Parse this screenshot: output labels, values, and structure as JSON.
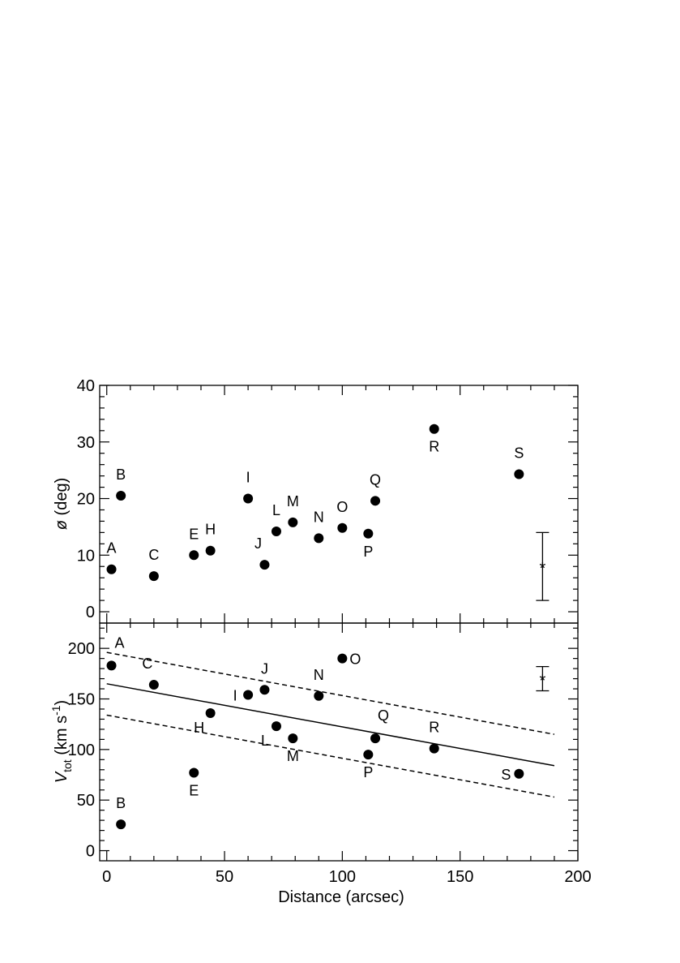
{
  "chart_data": [
    {
      "type": "scatter",
      "panel": "top",
      "ylabel_symbol": "ø",
      "ylabel_unit": " (deg)",
      "xlim": [
        -3,
        200
      ],
      "ylim": [
        -2,
        40
      ],
      "x_ticks": [
        0,
        50,
        100,
        150,
        200
      ],
      "y_ticks": [
        0,
        10,
        20,
        30,
        40
      ],
      "y_tick_labels": [
        "0",
        "10",
        "20",
        "30",
        "40"
      ],
      "x_tick_labels_shown": false,
      "series": [
        {
          "points": [
            {
              "label": "A",
              "x": 2,
              "y": 7.5,
              "label_pos": "above"
            },
            {
              "label": "B",
              "x": 6,
              "y": 20.5,
              "label_pos": "above"
            },
            {
              "label": "C",
              "x": 20,
              "y": 6.3,
              "label_pos": "above"
            },
            {
              "label": "E",
              "x": 37,
              "y": 10,
              "label_pos": "above"
            },
            {
              "label": "H",
              "x": 44,
              "y": 10.8,
              "label_pos": "above"
            },
            {
              "label": "I",
              "x": 60,
              "y": 20,
              "label_pos": "above"
            },
            {
              "label": "J",
              "x": 67,
              "y": 8.3,
              "label_pos": "above-left"
            },
            {
              "label": "L",
              "x": 72,
              "y": 14.2,
              "label_pos": "above"
            },
            {
              "label": "M",
              "x": 79,
              "y": 15.8,
              "label_pos": "above"
            },
            {
              "label": "N",
              "x": 90,
              "y": 13,
              "label_pos": "above"
            },
            {
              "label": "O",
              "x": 100,
              "y": 14.8,
              "label_pos": "above"
            },
            {
              "label": "P",
              "x": 111,
              "y": 13.8,
              "label_pos": "below"
            },
            {
              "label": "Q",
              "x": 114,
              "y": 19.6,
              "label_pos": "above"
            },
            {
              "label": "R",
              "x": 139,
              "y": 32.3,
              "label_pos": "below"
            },
            {
              "label": "S",
              "x": 175,
              "y": 24.3,
              "label_pos": "above"
            }
          ]
        }
      ],
      "error_bar": {
        "x": 185,
        "y": 8,
        "err": 6,
        "marker": "*"
      }
    },
    {
      "type": "scatter",
      "panel": "bottom",
      "ylabel_main": "V",
      "ylabel_sub": "tot",
      "ylabel_unit": " (km s",
      "ylabel_sup": "-1",
      "ylabel_close": ")",
      "xlabel": "Distance (arcsec)",
      "xlim": [
        -3,
        200
      ],
      "ylim": [
        -10,
        225
      ],
      "x_ticks": [
        0,
        50,
        100,
        150,
        200
      ],
      "x_tick_labels": [
        "0",
        "50",
        "100",
        "150",
        "200"
      ],
      "y_ticks": [
        0,
        50,
        100,
        150,
        200
      ],
      "y_tick_labels": [
        "0",
        "50",
        "100",
        "150",
        "200"
      ],
      "series": [
        {
          "points": [
            {
              "label": "A",
              "x": 2,
              "y": 183,
              "label_pos": "above-right"
            },
            {
              "label": "B",
              "x": 6,
              "y": 26,
              "label_pos": "above"
            },
            {
              "label": "C",
              "x": 20,
              "y": 164,
              "label_pos": "above-left"
            },
            {
              "label": "E",
              "x": 37,
              "y": 77,
              "label_pos": "below"
            },
            {
              "label": "H",
              "x": 44,
              "y": 136,
              "label_pos": "below-left"
            },
            {
              "label": "I",
              "x": 60,
              "y": 154,
              "label_pos": "left"
            },
            {
              "label": "J",
              "x": 67,
              "y": 159,
              "label_pos": "above"
            },
            {
              "label": "L",
              "x": 72,
              "y": 123,
              "label_pos": "below-left"
            },
            {
              "label": "M",
              "x": 79,
              "y": 111,
              "label_pos": "below"
            },
            {
              "label": "N",
              "x": 90,
              "y": 153,
              "label_pos": "above"
            },
            {
              "label": "O",
              "x": 100,
              "y": 190,
              "label_pos": "right"
            },
            {
              "label": "P",
              "x": 111,
              "y": 95,
              "label_pos": "below"
            },
            {
              "label": "Q",
              "x": 114,
              "y": 111,
              "label_pos": "above-right"
            },
            {
              "label": "R",
              "x": 139,
              "y": 101,
              "label_pos": "above"
            },
            {
              "label": "S",
              "x": 175,
              "y": 76,
              "label_pos": "left"
            }
          ]
        }
      ],
      "lines": [
        {
          "style": "solid",
          "x": [
            0,
            190
          ],
          "y": [
            165,
            84
          ]
        },
        {
          "style": "dashed",
          "x": [
            0,
            190
          ],
          "y": [
            196,
            115
          ]
        },
        {
          "style": "dashed",
          "x": [
            0,
            190
          ],
          "y": [
            134,
            53
          ]
        }
      ],
      "error_bar": {
        "x": 185,
        "y": 170,
        "err": 12,
        "marker": "*"
      }
    }
  ]
}
